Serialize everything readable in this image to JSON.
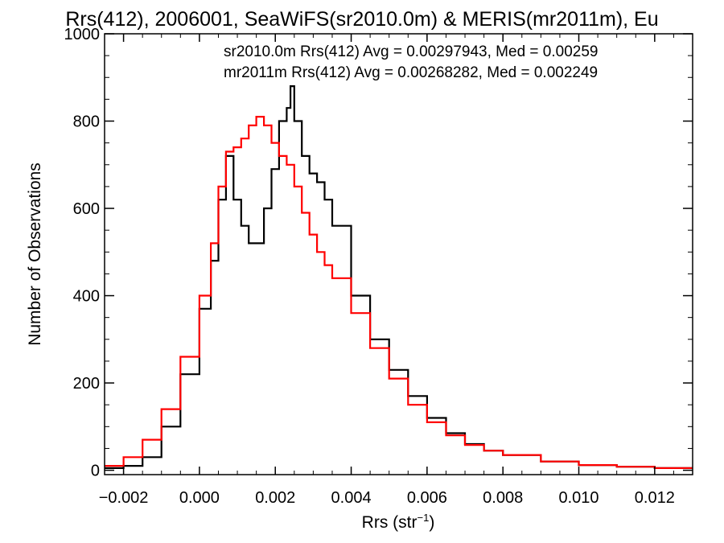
{
  "chart_data": {
    "type": "line",
    "title": "Rrs(412), 2006001, SeaWiFS(sr2010.0m) & MERIS(mr2011m), Eu",
    "xlabel": "Rrs (str",
    "xlabel_sup": "−1",
    "xlabel_end": ")",
    "ylabel": "Number of Observations",
    "xlim": [
      -0.0025,
      0.013
    ],
    "ylim": [
      -10,
      1000
    ],
    "x_ticks": [
      -0.002,
      0.0,
      0.002,
      0.004,
      0.006,
      0.008,
      0.01,
      0.012
    ],
    "x_tick_labels": [
      "−0.002",
      "0.000",
      "0.002",
      "0.004",
      "0.006",
      "0.008",
      "0.010",
      "0.012"
    ],
    "y_ticks": [
      0,
      200,
      400,
      600,
      800,
      1000
    ],
    "y_tick_labels": [
      "0",
      "200",
      "400",
      "600",
      "800",
      "1000"
    ],
    "legend_placement": "top",
    "grid": false,
    "series": [
      {
        "name": "sr2010.0m",
        "color": "#000000",
        "annotation": "sr2010.0m Rrs(412) Avg = 0.00297943, Med = 0.00259",
        "x": [
          -0.0025,
          -0.002,
          -0.0015,
          -0.001,
          -0.0005,
          0.0,
          0.0003,
          0.0005,
          0.0007,
          0.0009,
          0.0011,
          0.0013,
          0.0015,
          0.0017,
          0.0019,
          0.0021,
          0.0023,
          0.0024,
          0.0025,
          0.0027,
          0.0029,
          0.0031,
          0.0033,
          0.0035,
          0.004,
          0.0045,
          0.005,
          0.0055,
          0.006,
          0.0065,
          0.007,
          0.0075,
          0.008,
          0.009,
          0.01,
          0.011,
          0.012,
          0.013
        ],
        "values": [
          5,
          10,
          30,
          100,
          220,
          370,
          480,
          620,
          720,
          620,
          560,
          520,
          520,
          600,
          690,
          800,
          830,
          880,
          800,
          720,
          680,
          660,
          620,
          560,
          400,
          300,
          230,
          170,
          120,
          85,
          60,
          45,
          35,
          20,
          12,
          8,
          5,
          3
        ]
      },
      {
        "name": "mr2011m",
        "color": "#ff0000",
        "annotation": "mr2011m Rrs(412) Avg = 0.00268282, Med = 0.002249",
        "x": [
          -0.0025,
          -0.002,
          -0.0015,
          -0.001,
          -0.0005,
          0.0,
          0.0003,
          0.0005,
          0.0007,
          0.0009,
          0.0011,
          0.0013,
          0.0015,
          0.0017,
          0.0019,
          0.0021,
          0.0023,
          0.0025,
          0.0027,
          0.0029,
          0.0031,
          0.0033,
          0.0035,
          0.004,
          0.0045,
          0.005,
          0.0055,
          0.006,
          0.0065,
          0.007,
          0.0075,
          0.008,
          0.009,
          0.01,
          0.011,
          0.012,
          0.013
        ],
        "values": [
          10,
          30,
          70,
          140,
          260,
          400,
          520,
          650,
          730,
          740,
          760,
          790,
          810,
          790,
          750,
          720,
          700,
          650,
          590,
          540,
          500,
          470,
          440,
          360,
          280,
          210,
          150,
          110,
          80,
          58,
          45,
          35,
          20,
          12,
          8,
          5,
          3
        ]
      }
    ]
  }
}
